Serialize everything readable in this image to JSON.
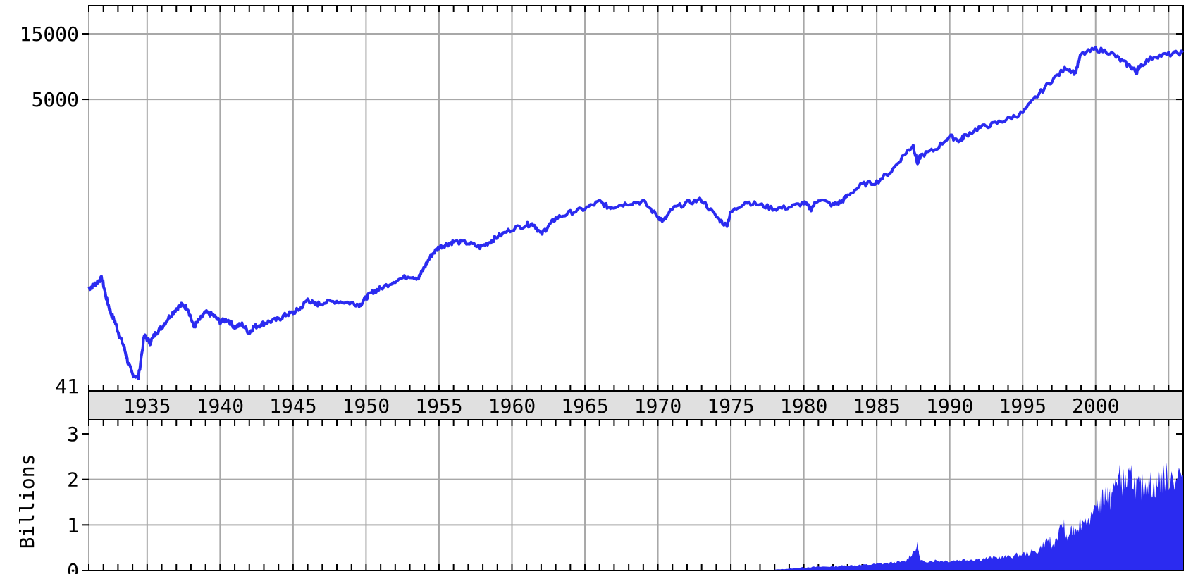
{
  "chart_data": [
    {
      "type": "line",
      "name": "price-panel",
      "scale": "log",
      "ylim": [
        41,
        15000
      ],
      "xlim": [
        1931.0,
        2006.0
      ],
      "y_tick_labels": [
        "15000",
        "5000",
        "41"
      ],
      "y_ticks": [
        15000,
        5000,
        41
      ],
      "x_tick_labels": [
        "1935",
        "1940",
        "1945",
        "1950",
        "1955",
        "1960",
        "1965",
        "1970",
        "1975",
        "1980",
        "1985",
        "1990",
        "1995",
        "2000"
      ],
      "x_ticks": [
        1935,
        1940,
        1945,
        1950,
        1955,
        1960,
        1965,
        1970,
        1975,
        1980,
        1985,
        1990,
        1995,
        2000
      ],
      "grid": true,
      "line_color": "#2b2bf0",
      "series": [
        {
          "x": [
            1931.0,
            1931.3,
            1931.6,
            1931.9,
            1932.2,
            1932.5,
            1932.8,
            1933.1,
            1933.4,
            1933.7,
            1934.0,
            1934.4,
            1934.8,
            1935.2,
            1935.6,
            1936.0,
            1936.5,
            1937.0,
            1937.4,
            1937.8,
            1938.2,
            1938.6,
            1939.0,
            1939.5,
            1940.0,
            1940.5,
            1941.0,
            1941.5,
            1942.0,
            1942.3,
            1942.8,
            1943.3,
            1944.0,
            1944.5,
            1945.0,
            1945.5,
            1946.0,
            1946.5,
            1947.0,
            1948.0,
            1949.0,
            1949.6,
            1950.0,
            1950.5,
            1951.0,
            1952.0,
            1953.0,
            1953.6,
            1954.0,
            1954.5,
            1955.0,
            1955.5,
            1956.0,
            1957.0,
            1957.8,
            1958.5,
            1959.0,
            1960.0,
            1961.0,
            1961.5,
            1962.0,
            1962.5,
            1963.0,
            1964.0,
            1965.0,
            1966.0,
            1966.6,
            1967.0,
            1968.0,
            1969.0,
            1970.0,
            1970.4,
            1971.0,
            1972.0,
            1973.0,
            1974.0,
            1974.7,
            1975.0,
            1976.0,
            1977.0,
            1978.0,
            1979.0,
            1980.0,
            1980.5,
            1981.0,
            1982.0,
            1982.6,
            1983.0,
            1984.0,
            1985.0,
            1986.0,
            1987.0,
            1987.5,
            1987.8,
            1988.0,
            1989.0,
            1990.0,
            1990.7,
            1991.0,
            1992.0,
            1993.0,
            1994.0,
            1995.0,
            1996.0,
            1997.0,
            1998.0,
            1998.6,
            1999.0,
            2000.0,
            2001.0,
            2001.8,
            2002.5,
            2002.8,
            2003.0,
            2004.0,
            2005.0,
            2006.0
          ],
          "values": [
            210,
            220,
            235,
            250,
            180,
            140,
            120,
            95,
            80,
            60,
            50,
            47,
            95,
            85,
            100,
            110,
            130,
            150,
            160,
            150,
            110,
            125,
            140,
            135,
            120,
            125,
            110,
            115,
            100,
            110,
            115,
            120,
            125,
            135,
            140,
            150,
            175,
            160,
            165,
            170,
            165,
            160,
            180,
            200,
            210,
            240,
            260,
            250,
            300,
            370,
            420,
            440,
            460,
            450,
            420,
            460,
            500,
            570,
            610,
            620,
            520,
            600,
            680,
            750,
            800,
            900,
            820,
            830,
            880,
            900,
            700,
            650,
            800,
            880,
            930,
            700,
            600,
            750,
            900,
            850,
            800,
            820,
            880,
            800,
            940,
            850,
            900,
            1000,
            1200,
            1250,
            1500,
            2050,
            2300,
            1700,
            1950,
            2150,
            2700,
            2500,
            2700,
            3100,
            3300,
            3600,
            4000,
            5300,
            6900,
            8500,
            7800,
            10600,
            11600,
            11000,
            9500,
            8500,
            7900,
            8700,
            10300,
            10600,
            11000
          ]
        }
      ]
    },
    {
      "type": "bar",
      "name": "volume-panel",
      "ylabel": "Billions",
      "ylim": [
        0,
        3
      ],
      "xlim": [
        1931.0,
        2006.0
      ],
      "y_tick_labels": [
        "3",
        "2",
        "1",
        "0"
      ],
      "y_ticks": [
        3,
        2,
        1,
        0
      ],
      "grid": true,
      "bar_color": "#2b2bf0",
      "series": [
        {
          "x": [
            1978.0,
            1979.0,
            1980.0,
            1981.0,
            1982.0,
            1983.0,
            1984.0,
            1985.0,
            1986.0,
            1987.0,
            1987.8,
            1988.0,
            1989.0,
            1990.0,
            1991.0,
            1992.0,
            1993.0,
            1994.0,
            1995.0,
            1996.0,
            1996.8,
            1997.0,
            1997.8,
            1998.0,
            1998.5,
            1999.0,
            2000.0,
            2000.3,
            2000.8,
            2001.0,
            2001.5,
            2002.0,
            2002.5,
            2003.0,
            2003.5,
            2004.0,
            2004.5,
            2005.0,
            2006.0
          ],
          "values": [
            0.02,
            0.04,
            0.07,
            0.08,
            0.09,
            0.11,
            0.12,
            0.14,
            0.17,
            0.2,
            0.55,
            0.2,
            0.22,
            0.21,
            0.24,
            0.25,
            0.28,
            0.3,
            0.36,
            0.42,
            0.7,
            0.5,
            1.05,
            0.7,
            0.9,
            1.05,
            1.25,
            1.45,
            1.7,
            1.55,
            2.05,
            1.9,
            2.05,
            1.75,
            1.95,
            1.85,
            2.0,
            2.05,
            2.1
          ]
        }
      ]
    }
  ]
}
